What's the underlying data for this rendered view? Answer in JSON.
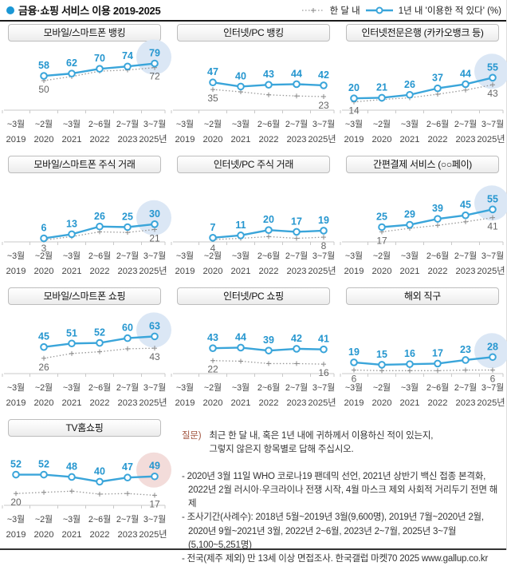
{
  "header": {
    "title": "금융·쇼핑 서비스 이용 2019-2025",
    "legend_monthly": "한 달 내",
    "legend_yearly": "1년 내  '이용한 적 있다' (%)"
  },
  "colors": {
    "accent_blue": "#2e9fd6",
    "line_blue": "#3aa5da",
    "label_blue": "#2596cf",
    "gray_line": "#999999",
    "gray_label": "#666666",
    "axis_gray": "#c9c9c9",
    "xlabel_gray": "#444444",
    "highlight_blue": "#dbe7f5",
    "highlight_pink": "#f3dcda",
    "question_label": "#a2543f",
    "bullet_blue": "#1a97d5"
  },
  "chart_data": {
    "type": "line",
    "title": "금융·쇼핑 서비스 이용 2019-2025",
    "ylim": [
      0,
      100
    ],
    "grid": false,
    "legend_position": "top-right",
    "categories_month": [
      "~3월",
      "~2월",
      "~3월",
      "2~6월",
      "2~7월",
      "3~7월"
    ],
    "categories_year": [
      "2019",
      "2020",
      "2021",
      "2022",
      "2023",
      "2025년"
    ],
    "series_names": [
      "1년 내 '이용한 적 있다' (%)",
      "한 달 내"
    ],
    "panels": [
      {
        "title": "모바일/스마트폰 뱅킹",
        "start": 1,
        "highlight": "blue",
        "yearly": [
          58,
          62,
          70,
          74,
          79
        ],
        "monthly": [
          50,
          57,
          66,
          68,
          72
        ],
        "monthly_labeled": [
          50,
          72
        ]
      },
      {
        "title": "인터넷/PC 뱅킹",
        "start": 1,
        "highlight": null,
        "yearly": [
          47,
          40,
          43,
          44,
          42
        ],
        "monthly": [
          35,
          31,
          26,
          24,
          23
        ],
        "monthly_labeled": [
          35,
          23
        ]
      },
      {
        "title": "인터넷전문은행 (카카오뱅크 등)",
        "start": 0,
        "highlight": "blue",
        "yearly": [
          20,
          21,
          26,
          37,
          44,
          55
        ],
        "monthly": [
          14,
          18,
          21,
          27,
          34,
          43
        ],
        "monthly_labeled": [
          14,
          43
        ]
      },
      {
        "title": "모바일/스마트폰 주식 거래",
        "start": 1,
        "highlight": "blue",
        "yearly": [
          6,
          13,
          26,
          25,
          30
        ],
        "monthly": [
          3,
          9,
          17,
          16,
          21
        ],
        "monthly_labeled": [
          3,
          21
        ]
      },
      {
        "title": "인터넷/PC 주식 거래",
        "start": 1,
        "highlight": null,
        "yearly": [
          7,
          11,
          20,
          17,
          19
        ],
        "monthly": [
          4,
          6,
          9,
          6,
          8
        ],
        "monthly_labeled": [
          4,
          8
        ]
      },
      {
        "title": "간편결제 서비스 (○○페이)",
        "start": 1,
        "highlight": "blue",
        "yearly": [
          25,
          29,
          39,
          45,
          55
        ],
        "monthly": [
          17,
          23,
          28,
          34,
          41
        ],
        "monthly_labeled": [
          17,
          41
        ]
      },
      {
        "title": "모바일/스마트폰 쇼핑",
        "start": 1,
        "highlight": "blue",
        "yearly": [
          45,
          51,
          52,
          60,
          63
        ],
        "monthly": [
          26,
          34,
          37,
          42,
          43
        ],
        "monthly_labeled": [
          26,
          43
        ]
      },
      {
        "title": "인터넷/PC 쇼핑",
        "start": 1,
        "highlight": null,
        "yearly": [
          43,
          44,
          39,
          42,
          41
        ],
        "monthly": [
          22,
          21,
          17,
          17,
          16
        ],
        "monthly_labeled": [
          22,
          16
        ]
      },
      {
        "title": "해외 직구",
        "start": 0,
        "highlight": "blue",
        "yearly": [
          19,
          15,
          16,
          17,
          23,
          28
        ],
        "monthly": [
          6,
          5,
          5,
          5,
          6,
          6
        ],
        "monthly_labeled": [
          6,
          6
        ]
      },
      {
        "title": "TV홈쇼핑",
        "start": 0,
        "highlight": "pink",
        "yearly": [
          52,
          52,
          48,
          40,
          47,
          49
        ],
        "monthly": [
          20,
          22,
          24,
          19,
          20,
          17
        ],
        "monthly_labeled": [
          20,
          17
        ]
      }
    ]
  },
  "question": {
    "label": "질문)",
    "line1": "최근 한 달 내, 혹은 1년 내에 귀하께서 이용하신 적이 있는지,",
    "line2": "그렇지 않은지 항목별로 답해 주십시오."
  },
  "notes": [
    "- 2020년 3월 11일 WHO 코로나19 팬데믹 선언, 2021년 상반기 백신 접종 본격화,",
    "2022년 2월 러시아·우크라이나 전쟁 시작, 4월 마스크 제외 사회적 거리두기 전면 해제",
    "- 조사기간(사례수): 2018년 5월~2019년 3월(9,600명), 2019년 7월~2020년 2월,",
    "2020년 9월~2021년 3월, 2022년 2~6월, 2023년 2~7월, 2025년 3~7월(5,100~5,251명)",
    "- 전국(제주 제외) 만 13세 이상 면접조사. 한국갤럽 마켓70 2025 www.gallup.co.kr"
  ]
}
